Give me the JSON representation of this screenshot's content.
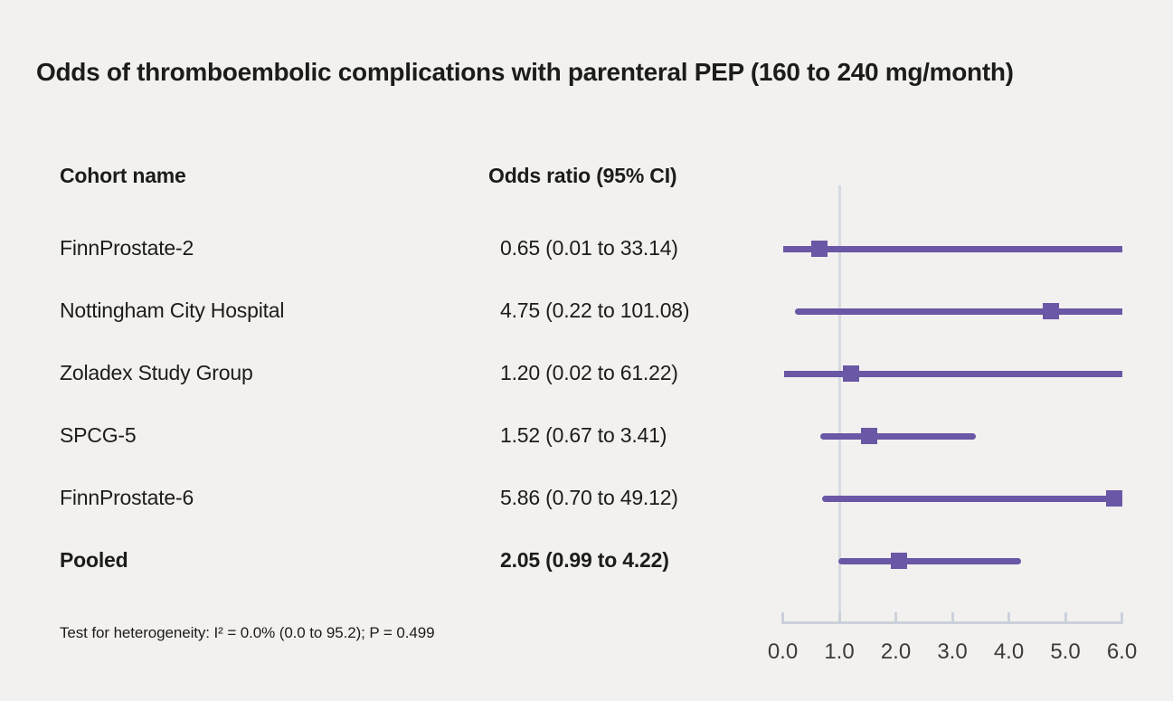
{
  "title": "Odds of thromboembolic complications with parenteral PEP (160 to 240 mg/month)",
  "table": {
    "cohort_header": "Cohort name",
    "or_header": "Odds ratio (95% CI)"
  },
  "colors": {
    "background": "#f2f1ef",
    "accent": "#6a57a5",
    "reference_line": "#d7dbe2",
    "axis": "#cbd1da",
    "text": "#1c1c1a",
    "tick_text": "#3c3b39"
  },
  "chart_data": {
    "type": "forest",
    "title": "Odds of thromboembolic complications with parenteral PEP (160 to 240 mg/month)",
    "xlabel": "Odds ratio",
    "xlim": [
      0,
      6
    ],
    "tick_values": [
      0,
      1,
      2,
      3,
      4,
      5,
      6
    ],
    "tick_labels": [
      "0.0",
      "1.0",
      "2.0",
      "3.0",
      "4.0",
      "5.0",
      "6.0"
    ],
    "reference_line_x": 1.0,
    "grid": false,
    "legend": "none",
    "rows": [
      {
        "cohort": "FinnProstate-2",
        "or": 0.65,
        "ci_low": 0.01,
        "ci_high": 33.14,
        "label": "0.65 (0.01 to 33.14)",
        "bold": false
      },
      {
        "cohort": "Nottingham City Hospital",
        "or": 4.75,
        "ci_low": 0.22,
        "ci_high": 101.08,
        "label": "4.75 (0.22 to 101.08)",
        "bold": false
      },
      {
        "cohort": "Zoladex Study Group",
        "or": 1.2,
        "ci_low": 0.02,
        "ci_high": 61.22,
        "label": "1.20 (0.02 to 61.22)",
        "bold": false
      },
      {
        "cohort": "SPCG-5",
        "or": 1.52,
        "ci_low": 0.67,
        "ci_high": 3.41,
        "label": "1.52 (0.67 to 3.41)",
        "bold": false
      },
      {
        "cohort": "FinnProstate-6",
        "or": 5.86,
        "ci_low": 0.7,
        "ci_high": 49.12,
        "label": "5.86 (0.70 to 49.12)",
        "bold": false
      },
      {
        "cohort": "Pooled",
        "or": 2.05,
        "ci_low": 0.99,
        "ci_high": 4.22,
        "label": "2.05 (0.99 to 4.22)",
        "bold": true
      }
    ],
    "heterogeneity_note": "Test for heterogeneity: I² = 0.0% (0.0 to 95.2); P = 0.499"
  }
}
